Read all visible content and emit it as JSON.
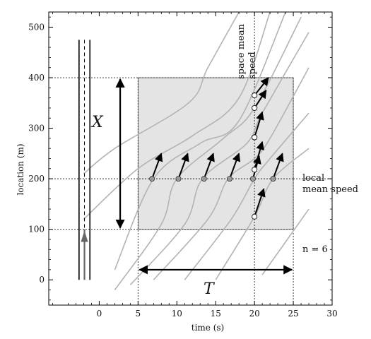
{
  "diagram": {
    "xlabel": "time (s)",
    "ylabel": "location (m)",
    "xlim": [
      -6.5,
      30
    ],
    "ylim": [
      -50,
      530
    ],
    "xticks": [
      0,
      5,
      10,
      15,
      20,
      25,
      30
    ],
    "yticks": [
      0,
      100,
      200,
      300,
      400,
      500
    ],
    "region": {
      "t_start": 5,
      "t_end": 25,
      "x_start": 100,
      "x_end": 400,
      "fill": "#e4e4e4"
    },
    "local_detector_x": 200,
    "space_snapshot_t": 20,
    "labels": {
      "X": "X",
      "T": "T",
      "n": "n = 6",
      "local_mean_speed": "local mean speed",
      "space_mean_speed": "space mean speed"
    },
    "colors": {
      "trajectory": "#b3b3b3",
      "arrow": "#000000",
      "marker_fill": "#9a9a9a"
    },
    "trajectories": [
      [
        [
          -2,
          210
        ],
        [
          2,
          260
        ],
        [
          11.5,
          350
        ],
        [
          14,
          420
        ],
        [
          18,
          530
        ]
      ],
      [
        [
          -2,
          120
        ],
        [
          5,
          220
        ],
        [
          12,
          285
        ],
        [
          18,
          360
        ],
        [
          22,
          530
        ]
      ],
      [
        [
          2,
          20
        ],
        [
          7,
          200
        ],
        [
          13,
          270
        ],
        [
          18,
          315
        ],
        [
          24,
          530
        ]
      ],
      [
        [
          2,
          -20
        ],
        [
          8,
          110
        ],
        [
          10,
          200
        ],
        [
          16,
          280
        ],
        [
          20,
          340
        ],
        [
          26,
          520
        ]
      ],
      [
        [
          4,
          -10
        ],
        [
          11,
          110
        ],
        [
          13.3,
          200
        ],
        [
          19,
          270
        ],
        [
          21,
          330
        ],
        [
          27,
          490
        ]
      ],
      [
        [
          7,
          0
        ],
        [
          14,
          120
        ],
        [
          16.6,
          200
        ],
        [
          20,
          240
        ],
        [
          22,
          280
        ],
        [
          27,
          420
        ]
      ],
      [
        [
          11,
          0
        ],
        [
          17,
          120
        ],
        [
          20,
          200
        ],
        [
          22,
          240
        ],
        [
          27,
          330
        ]
      ],
      [
        [
          15,
          0
        ],
        [
          20,
          125
        ],
        [
          22.4,
          200
        ],
        [
          27,
          260
        ]
      ],
      [
        [
          21,
          10
        ],
        [
          27,
          140
        ]
      ]
    ],
    "local_points": [
      6.8,
      10.2,
      13.5,
      16.8,
      19.8,
      22.4
    ],
    "space_points": [
      125,
      218,
      282,
      340,
      365
    ],
    "local_arrows": [
      [
        6.8,
        200,
        1.2,
        50
      ],
      [
        10.2,
        200,
        1.2,
        50
      ],
      [
        13.5,
        200,
        1.2,
        50
      ],
      [
        16.8,
        200,
        1.2,
        50
      ],
      [
        19.8,
        200,
        0.8,
        45
      ],
      [
        22.4,
        200,
        1.2,
        50
      ]
    ],
    "space_arrows": [
      [
        20,
        125,
        1.2,
        55
      ],
      [
        20,
        218,
        1.0,
        55
      ],
      [
        20,
        282,
        1.0,
        50
      ],
      [
        20,
        340,
        1.5,
        35
      ],
      [
        20,
        365,
        1.8,
        35
      ]
    ]
  }
}
